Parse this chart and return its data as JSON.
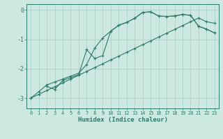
{
  "xlabel": "Humidex (Indice chaleur)",
  "ylabel": "",
  "xlim": [
    -0.5,
    23.5
  ],
  "ylim": [
    -3.35,
    0.2
  ],
  "xticks": [
    0,
    1,
    2,
    3,
    4,
    5,
    6,
    7,
    8,
    9,
    10,
    11,
    12,
    13,
    14,
    15,
    16,
    17,
    18,
    19,
    20,
    21,
    22,
    23
  ],
  "yticks": [
    0,
    -1,
    -2,
    -3
  ],
  "background_color": "#cce8e0",
  "grid_color": "#a8ccca",
  "line_color": "#2d7a6a",
  "line1_x": [
    0,
    1,
    2,
    3,
    4,
    5,
    6,
    7,
    8,
    9,
    10,
    11,
    12,
    13,
    14,
    15,
    16,
    17,
    18,
    19,
    20,
    21,
    22,
    23
  ],
  "line1_y": [
    -3.0,
    -2.78,
    -2.55,
    -2.45,
    -2.35,
    -2.25,
    -2.15,
    -1.85,
    -1.3,
    -0.95,
    -0.72,
    -0.52,
    -0.42,
    -0.28,
    -0.08,
    -0.06,
    -0.2,
    -0.22,
    -0.2,
    -0.15,
    -0.18,
    -0.55,
    -0.65,
    -0.78
  ],
  "line2_x": [
    0,
    1,
    2,
    3,
    4,
    5,
    6,
    7,
    8,
    9,
    10,
    11,
    12,
    13,
    14,
    15,
    16,
    17,
    18,
    19,
    20,
    21,
    22,
    23
  ],
  "line2_y": [
    -3.0,
    -2.87,
    -2.74,
    -2.61,
    -2.48,
    -2.35,
    -2.22,
    -2.09,
    -1.96,
    -1.83,
    -1.7,
    -1.57,
    -1.44,
    -1.31,
    -1.18,
    -1.05,
    -0.92,
    -0.79,
    -0.66,
    -0.53,
    -0.4,
    -0.27,
    -0.4,
    -0.45
  ],
  "line3_x": [
    2,
    3,
    4,
    5,
    6,
    7,
    8,
    9,
    10,
    11,
    12,
    13,
    14,
    15,
    16,
    17,
    18,
    19,
    20,
    21,
    22,
    23
  ],
  "line3_y": [
    -2.6,
    -2.7,
    -2.4,
    -2.3,
    -2.2,
    -1.35,
    -1.65,
    -1.55,
    -0.72,
    -0.52,
    -0.42,
    -0.28,
    -0.08,
    -0.06,
    -0.2,
    -0.22,
    -0.2,
    -0.15,
    -0.18,
    -0.55,
    -0.65,
    -0.78
  ]
}
